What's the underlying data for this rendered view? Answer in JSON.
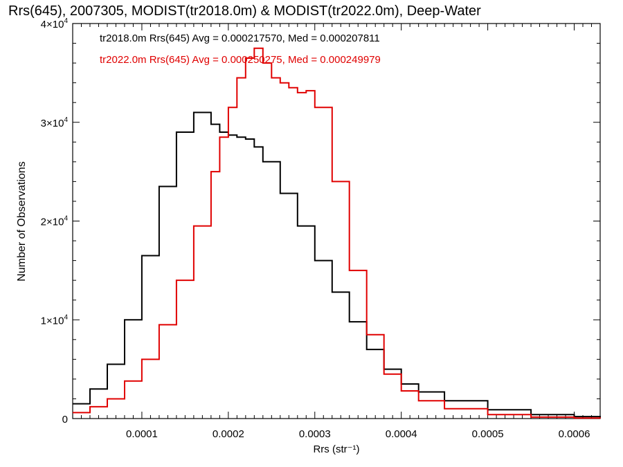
{
  "chart_data": {
    "type": "line",
    "title": "Rrs(645), 2007305, MODIST(tr2018.0m) & MODIST(tr2022.0m), Deep-Water",
    "xlabel": "Rrs (str⁻¹)",
    "ylabel": "Number of Observations",
    "xlim": [
      2e-05,
      0.00063
    ],
    "ylim": [
      0,
      40000
    ],
    "x_ticks": [
      0.0001,
      0.0002,
      0.0003,
      0.0004,
      0.0005,
      0.0006
    ],
    "x_tick_labels": [
      "0.0001",
      "0.0002",
      "0.0003",
      "0.0004",
      "0.0005",
      "0.0006"
    ],
    "y_ticks": [
      {
        "value": 0,
        "mantissa": "0",
        "exponent": ""
      },
      {
        "value": 10000,
        "mantissa": "1×10",
        "exponent": "4"
      },
      {
        "value": 20000,
        "mantissa": "2×10",
        "exponent": "4"
      },
      {
        "value": 30000,
        "mantissa": "3×10",
        "exponent": "4"
      },
      {
        "value": 40000,
        "mantissa": "4×10",
        "exponent": "4"
      }
    ],
    "series": [
      {
        "name": "tr2018.0m",
        "color": "#000000",
        "stats_label": "tr2018.0m Rrs(645) Avg = 0.000217570, Med = 0.000207811",
        "x": [
          2e-05,
          4e-05,
          6e-05,
          8e-05,
          0.0001,
          0.00012,
          0.00014,
          0.00016,
          0.00017,
          0.00018,
          0.00019,
          0.0002,
          0.00021,
          0.00022,
          0.00023,
          0.00024,
          0.00026,
          0.00028,
          0.0003,
          0.00032,
          0.00034,
          0.00036,
          0.00038,
          0.0004,
          0.00042,
          0.00045,
          0.0005,
          0.00055,
          0.0006,
          0.00063
        ],
        "y": [
          1500,
          3000,
          5500,
          10000,
          16500,
          23500,
          29000,
          31000,
          31000,
          29800,
          29000,
          28700,
          28500,
          28300,
          27500,
          26000,
          22800,
          19500,
          16000,
          12800,
          9800,
          7000,
          5000,
          3500,
          2700,
          1800,
          900,
          400,
          200,
          100
        ]
      },
      {
        "name": "tr2022.0m",
        "color": "#e00000",
        "stats_label": "tr2022.0m Rrs(645) Avg = 0.000250275, Med = 0.000249979",
        "x": [
          2e-05,
          4e-05,
          6e-05,
          8e-05,
          0.0001,
          0.00012,
          0.00014,
          0.00016,
          0.00018,
          0.00019,
          0.0002,
          0.00021,
          0.00022,
          0.00023,
          0.00024,
          0.00025,
          0.00026,
          0.00027,
          0.00028,
          0.00029,
          0.0003,
          0.00032,
          0.00034,
          0.00036,
          0.00038,
          0.0004,
          0.00042,
          0.00045,
          0.0005,
          0.00055,
          0.0006,
          0.00063
        ],
        "y": [
          600,
          1200,
          2000,
          3800,
          6000,
          9500,
          14000,
          19500,
          25000,
          28500,
          31500,
          34500,
          36500,
          37500,
          36000,
          34500,
          34000,
          33500,
          33000,
          33200,
          31500,
          24000,
          15000,
          8500,
          4500,
          2800,
          1800,
          1000,
          400,
          150,
          50,
          20
        ]
      }
    ],
    "legend": "top-left (text annotations)",
    "grid": false
  }
}
